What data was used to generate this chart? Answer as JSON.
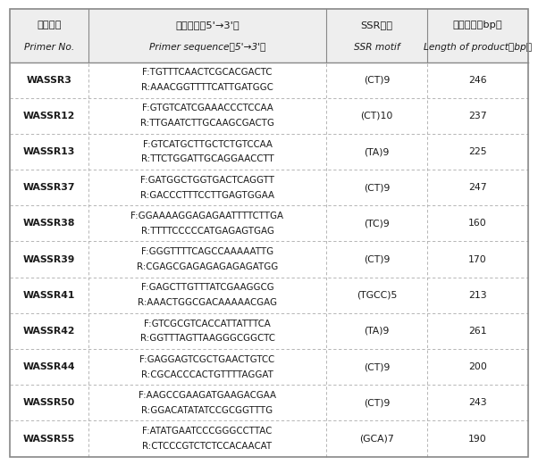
{
  "figsize": [
    6.02,
    5.21
  ],
  "dpi": 100,
  "background_color": "#ffffff",
  "header_ch": [
    "引物编号",
    "引物序列（5'→3'）",
    "SSR基元",
    "产物长度（bp）"
  ],
  "header_en": [
    "Primer No.",
    "Primer sequence（5'→3'）",
    "SSR motif",
    "Length of product（bp）"
  ],
  "col_props": [
    0.152,
    0.458,
    0.195,
    0.195
  ],
  "rows": [
    {
      "primer": "WASSR3",
      "seq_f": "F:TGTTTCAACTCGCACGACTC",
      "seq_r": "R:AAACGGTTTTCATTGATGGC",
      "ssr": "(CT)9",
      "length": "246"
    },
    {
      "primer": "WASSR12",
      "seq_f": "F:GTGTCATCGAAACCCTCCAA",
      "seq_r": "R:TTGAATCTTGCAAGCGACTG",
      "ssr": "(CT)10",
      "length": "237"
    },
    {
      "primer": "WASSR13",
      "seq_f": "F:GTCATGCTTGCTCTGTCCAA",
      "seq_r": "R:TTCTGGATTGCAGGAACCTT",
      "ssr": "(TA)9",
      "length": "225"
    },
    {
      "primer": "WASSR37",
      "seq_f": "F:GATGGCTGGTGACTCAGGTT",
      "seq_r": "R:GACCCTTTCCTTGAGTGGAA",
      "ssr": "(CT)9",
      "length": "247"
    },
    {
      "primer": "WASSR38",
      "seq_f": "F:GGAAAAGGAGAGAATTTTCTTGA",
      "seq_r": "R:TTTTCCCCCATGAGAGTGAG",
      "ssr": "(TC)9",
      "length": "160"
    },
    {
      "primer": "WASSR39",
      "seq_f": "F:GGGTTTTCAGCCAAAAATTG",
      "seq_r": "R:CGAGCGAGAGAGAGAGATGG",
      "ssr": "(CT)9",
      "length": "170"
    },
    {
      "primer": "WASSR41",
      "seq_f": "F:GAGCTTGTTTATCGAAGGCG",
      "seq_r": "R:AAACTGGCGACAAAAACGAG",
      "ssr": "(TGCC)5",
      "length": "213"
    },
    {
      "primer": "WASSR42",
      "seq_f": "F:GTCGCGTCACCATTATTTCA",
      "seq_r": "R:GGTTTAGTTAAGGGCGGCTC",
      "ssr": "(TA)9",
      "length": "261"
    },
    {
      "primer": "WASSR44",
      "seq_f": "F:GAGGAGTCGCTGAACTGTCC",
      "seq_r": "R:CGCACCCACTGTTTTAGGAT",
      "ssr": "(CT)9",
      "length": "200"
    },
    {
      "primer": "WASSR50",
      "seq_f": "F:AAGCCGAAGATGAAGACGAA",
      "seq_r": "R:GGACATATATCCGCGGTTTG",
      "ssr": "(CT)9",
      "length": "243"
    },
    {
      "primer": "WASSR55",
      "seq_f": "F:ATATGAATCCCGGGCCTTAC",
      "seq_r": "R:CTCCCGTCTCTCCACAACAT",
      "ssr": "(GCA)7",
      "length": "190"
    }
  ],
  "outer_line_color": "#888888",
  "inner_line_color": "#aaaaaa",
  "text_color": "#1a1a1a",
  "header_bg": "#eeeeee",
  "header_fontsize": 8.2,
  "cell_fontsize": 7.8,
  "seq_fontsize": 7.4
}
